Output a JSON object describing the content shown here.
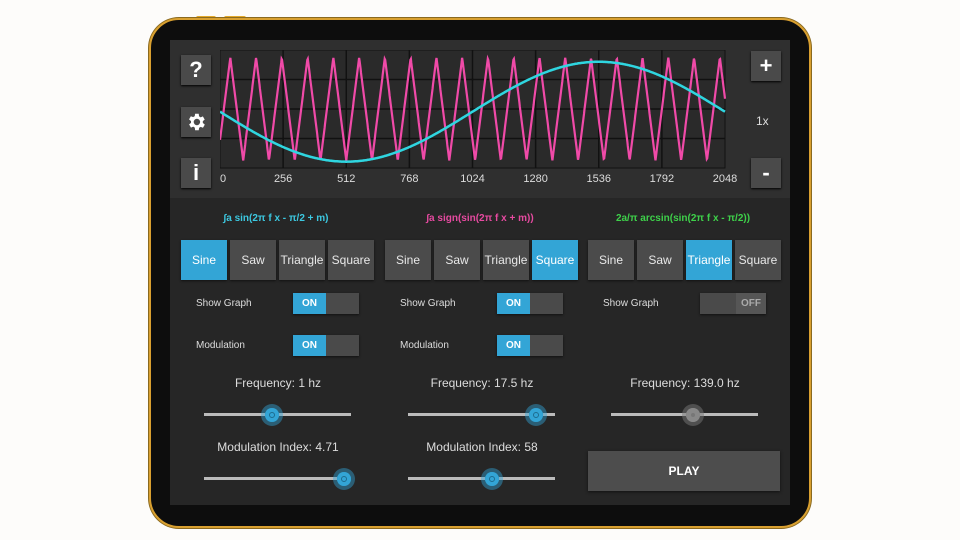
{
  "colors": {
    "accent": "#33a5d6",
    "sine_trace": "#2fd6e0",
    "square_trace": "#f04aa8",
    "formula1": "#3cc8e0",
    "formula2": "#e64aa0",
    "formula3": "#3ed04a"
  },
  "toolbar": {
    "help_label": "?",
    "settings_icon": "gear-icon",
    "info_label": "i",
    "zoom_in_label": "+",
    "zoom_out_label": "-",
    "zoom_level": "1x"
  },
  "graph": {
    "x_ticks": [
      "0",
      "256",
      "512",
      "768",
      "1024",
      "1280",
      "1536",
      "1792",
      "2048"
    ],
    "x_range": [
      0,
      2048
    ]
  },
  "oscillators": [
    {
      "formula": "∫a sin(2π f x - π/2 + m)",
      "waves": [
        "Sine",
        "Saw",
        "Triangle",
        "Square"
      ],
      "selected": "Sine",
      "show_graph_label": "Show Graph",
      "show_graph": "ON",
      "modulation_label": "Modulation",
      "modulation": "ON",
      "frequency_label": "Frequency: 1 hz",
      "frequency_fraction": 0.46,
      "mod_index_label": "Modulation Index: 4.71",
      "mod_index_fraction": 0.95
    },
    {
      "formula": "∫a sign(sin(2π f x + m))",
      "waves": [
        "Sine",
        "Saw",
        "Triangle",
        "Square"
      ],
      "selected": "Square",
      "show_graph_label": "Show Graph",
      "show_graph": "ON",
      "modulation_label": "Modulation",
      "modulation": "ON",
      "frequency_label": "Frequency: 17.5 hz",
      "frequency_fraction": 0.87,
      "mod_index_label": "Modulation Index: 58",
      "mod_index_fraction": 0.57
    },
    {
      "formula": "2a/π arcsin(sin(2π f x - π/2))",
      "waves": [
        "Sine",
        "Saw",
        "Triangle",
        "Square"
      ],
      "selected": "Triangle",
      "show_graph_label": "Show Graph",
      "show_graph": "OFF",
      "frequency_label": "Frequency: 139.0 hz",
      "frequency_fraction": 0.56
    }
  ],
  "play_label": "PLAY"
}
